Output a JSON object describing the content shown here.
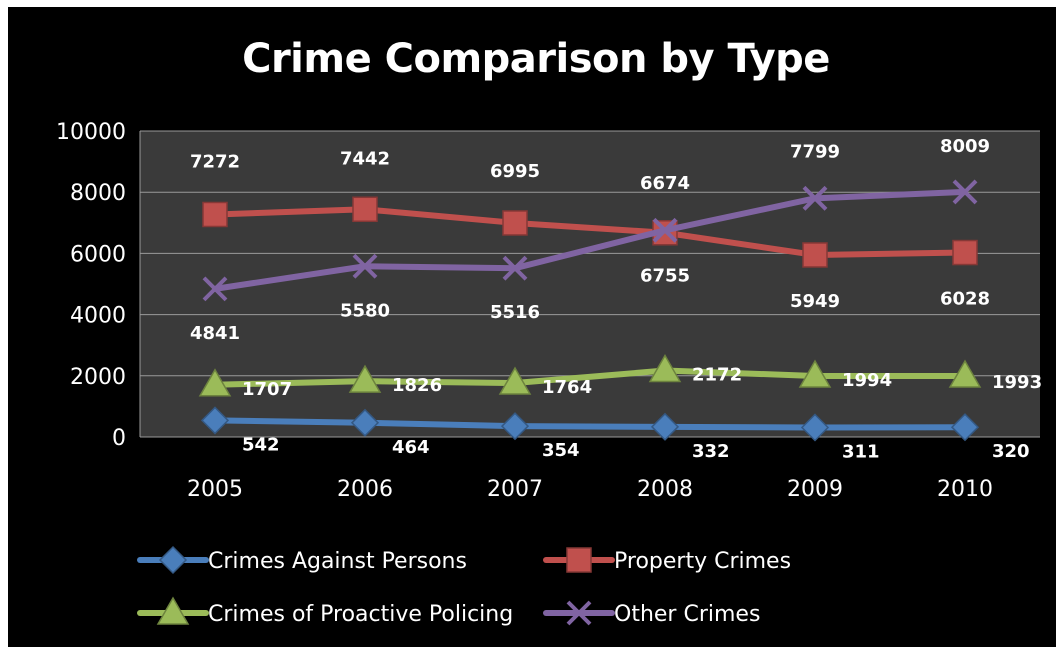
{
  "chart_data": {
    "type": "line",
    "title": "Crime Comparison by Type",
    "categories": [
      "2005",
      "2006",
      "2007",
      "2008",
      "2009",
      "2010"
    ],
    "ylim": [
      0,
      10000
    ],
    "yticks": [
      0,
      2000,
      4000,
      6000,
      8000,
      10000
    ],
    "grid": true,
    "legend_position": "bottom",
    "series": [
      {
        "name": "Crimes Against Persons",
        "color": "#4A7EBB",
        "marker": "diamond",
        "values": [
          542,
          464,
          354,
          332,
          311,
          320
        ]
      },
      {
        "name": "Property Crimes",
        "color": "#C0504D",
        "marker": "square",
        "values": [
          7272,
          7442,
          6995,
          6674,
          5949,
          6028
        ]
      },
      {
        "name": "Crimes of Proactive Policing",
        "color": "#9BBB59",
        "marker": "triangle",
        "values": [
          1707,
          1826,
          1764,
          2172,
          1994,
          1993
        ]
      },
      {
        "name": "Other Crimes",
        "color": "#8064A2",
        "marker": "x",
        "values": [
          4841,
          5580,
          5516,
          6755,
          7799,
          8009
        ]
      }
    ],
    "data_labels": [
      [
        "542",
        "464",
        "354",
        "332",
        "311",
        "320"
      ],
      [
        "7272",
        "7442",
        "6995",
        "6674",
        "5949",
        "6028"
      ],
      [
        "1707",
        "1826",
        "1764",
        "2172",
        "1994",
        "1993"
      ],
      [
        "4841",
        "5580",
        "5516",
        "6755",
        "7799",
        "8009"
      ]
    ]
  }
}
